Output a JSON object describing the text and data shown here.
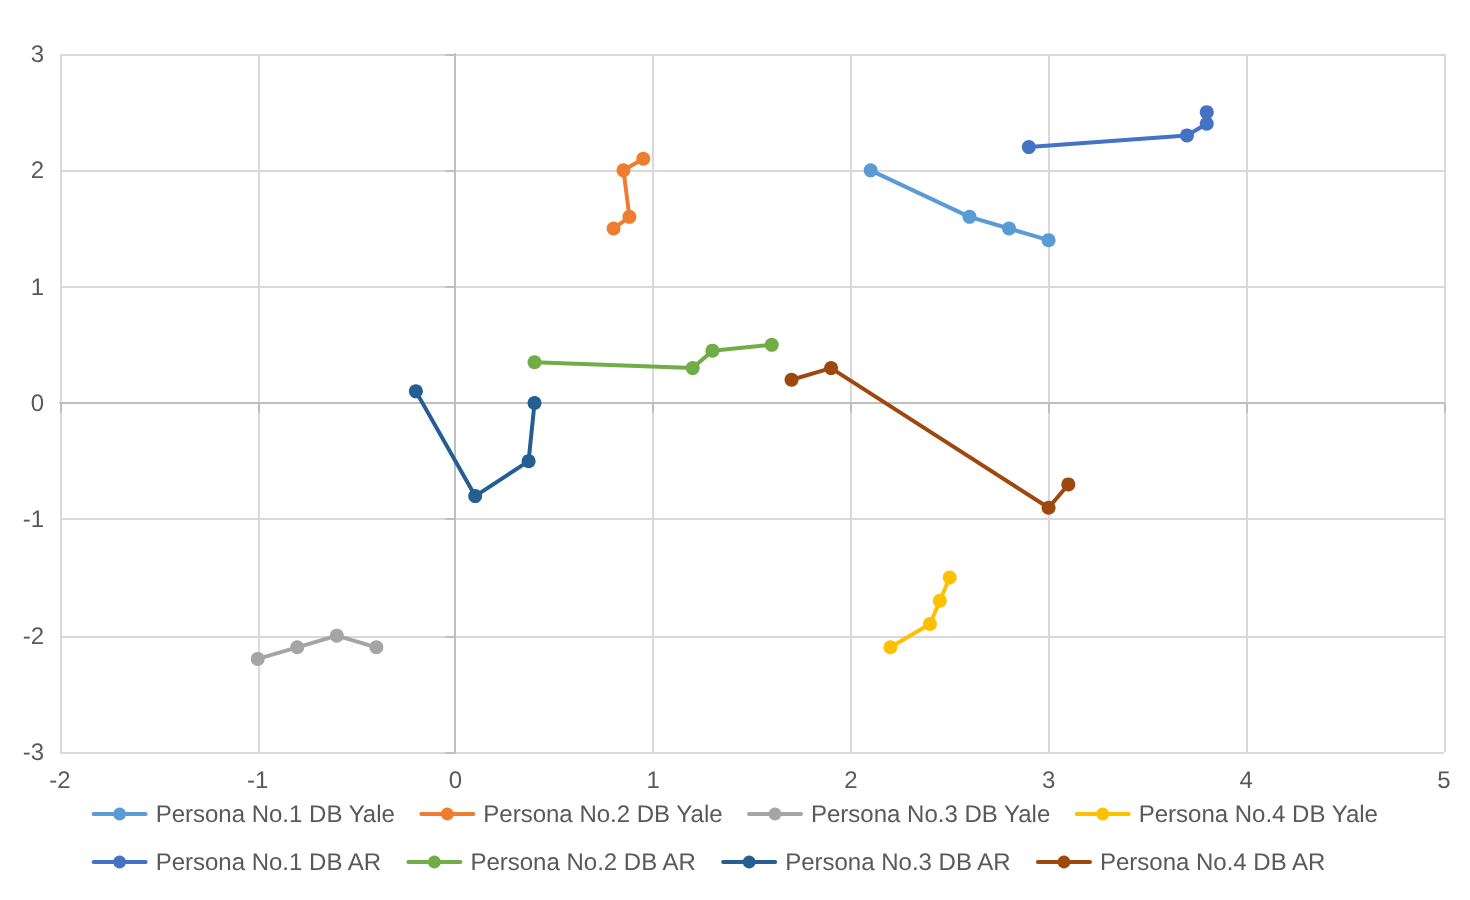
{
  "chart_data": {
    "type": "line",
    "marker": "circle",
    "grid": true,
    "legend": "bottom",
    "xlim": [
      -2,
      5
    ],
    "xticks": [
      -2,
      -1,
      0,
      1,
      2,
      3,
      4,
      5
    ],
    "ylim": [
      -3,
      3
    ],
    "yticks": [
      -3,
      -2,
      -1,
      0,
      1,
      2,
      3
    ],
    "series": [
      {
        "name": "Persona No.1 DB Yale",
        "color": "#5b9bd5",
        "x": [
          2.1,
          2.6,
          2.8,
          3.0
        ],
        "values": [
          2.0,
          1.6,
          1.5,
          1.4
        ]
      },
      {
        "name": "Persona No.2 DB Yale",
        "color": "#ed7d31",
        "x": [
          0.8,
          0.88,
          0.85,
          0.95
        ],
        "values": [
          1.5,
          1.6,
          2.0,
          2.1
        ]
      },
      {
        "name": "Persona No.3 DB Yale",
        "color": "#a5a5a5",
        "x": [
          -1.0,
          -0.8,
          -0.6,
          -0.4
        ],
        "values": [
          -2.2,
          -2.1,
          -2.0,
          -2.1
        ]
      },
      {
        "name": "Persona No.4 DB Yale",
        "color": "#ffc000",
        "x": [
          2.2,
          2.4,
          2.45,
          2.5
        ],
        "values": [
          -2.1,
          -1.9,
          -1.7,
          -1.5
        ]
      },
      {
        "name": "Persona No.1 DB AR",
        "color": "#4472c4",
        "x": [
          2.9,
          3.7,
          3.8,
          3.8
        ],
        "values": [
          2.2,
          2.3,
          2.4,
          2.5
        ]
      },
      {
        "name": "Persona No.2 DB AR",
        "color": "#70ad47",
        "x": [
          0.4,
          1.2,
          1.3,
          1.6
        ],
        "values": [
          0.35,
          0.3,
          0.45,
          0.5
        ]
      },
      {
        "name": "Persona No.3 DB AR",
        "color": "#255e91",
        "x": [
          -0.2,
          0.1,
          0.37,
          0.4
        ],
        "values": [
          0.1,
          -0.8,
          -0.5,
          0.0
        ]
      },
      {
        "name": "Persona No.4 DB AR",
        "color": "#9e480e",
        "x": [
          1.7,
          1.9,
          3.0,
          3.1
        ],
        "values": [
          0.2,
          0.3,
          -0.9,
          -0.7
        ]
      }
    ]
  }
}
